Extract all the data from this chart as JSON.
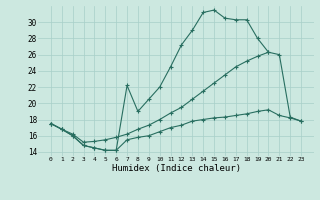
{
  "xlabel": "Humidex (Indice chaleur)",
  "x_upper": [
    0,
    1,
    2,
    3,
    4,
    5,
    6,
    7,
    8,
    9,
    10,
    11,
    12,
    13,
    14,
    15,
    16,
    17,
    18,
    19,
    20
  ],
  "y_upper": [
    17.5,
    16.8,
    16.0,
    14.8,
    14.5,
    14.2,
    14.2,
    22.2,
    19.0,
    20.5,
    22.0,
    24.5,
    27.2,
    29.0,
    31.2,
    31.5,
    30.5,
    30.3,
    30.3,
    28.0,
    26.3
  ],
  "x_lower": [
    0,
    1,
    2,
    3,
    4,
    5,
    6,
    7,
    8,
    9,
    10,
    11,
    12,
    13,
    14,
    15,
    16,
    17,
    18,
    19,
    20,
    21,
    22,
    23
  ],
  "y_lower": [
    17.5,
    16.8,
    16.0,
    14.8,
    14.5,
    14.2,
    14.2,
    15.5,
    15.8,
    16.0,
    16.5,
    17.0,
    17.3,
    17.8,
    18.0,
    18.2,
    18.3,
    18.5,
    18.7,
    19.0,
    19.2,
    18.5,
    18.2,
    17.8
  ],
  "x_mid": [
    0,
    1,
    2,
    3,
    4,
    5,
    6,
    7,
    8,
    9,
    10,
    11,
    12,
    13,
    14,
    15,
    16,
    17,
    18,
    19,
    20,
    21,
    22,
    23
  ],
  "y_mid": [
    17.5,
    16.8,
    16.2,
    15.2,
    15.3,
    15.5,
    15.8,
    16.2,
    16.8,
    17.3,
    18.0,
    18.8,
    19.5,
    20.5,
    21.5,
    22.5,
    23.5,
    24.5,
    25.2,
    25.8,
    26.3,
    26.0,
    18.3,
    17.8
  ],
  "ylim": [
    13.5,
    32.0
  ],
  "yticks": [
    14,
    16,
    18,
    20,
    22,
    24,
    26,
    28,
    30
  ],
  "xticks": [
    0,
    1,
    2,
    3,
    4,
    5,
    6,
    7,
    8,
    9,
    10,
    11,
    12,
    13,
    14,
    15,
    16,
    17,
    18,
    19,
    20,
    21,
    22,
    23
  ],
  "line_color": "#286e60",
  "bg_color": "#cce8e0",
  "grid_color": "#a8cfc8"
}
